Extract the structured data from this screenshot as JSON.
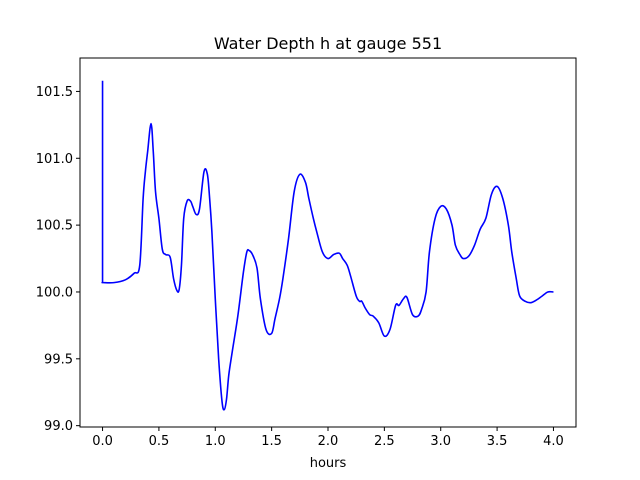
{
  "chart_data": {
    "type": "line",
    "title": "Water Depth h at gauge 551",
    "xlabel": "hours",
    "ylabel": "",
    "xlim": [
      -0.2,
      4.2
    ],
    "ylim": [
      98.99,
      101.75
    ],
    "x_ticks": [
      0.0,
      0.5,
      1.0,
      1.5,
      2.0,
      2.5,
      3.0,
      3.5,
      4.0
    ],
    "x_tick_labels": [
      "0.0",
      "0.5",
      "1.0",
      "1.5",
      "2.0",
      "2.5",
      "3.0",
      "3.5",
      "4.0"
    ],
    "y_ticks": [
      99.0,
      99.5,
      100.0,
      100.5,
      101.0,
      101.5
    ],
    "y_tick_labels": [
      "99.0",
      "99.5",
      "100.0",
      "100.5",
      "101.0",
      "101.5"
    ],
    "grid": false,
    "series": [
      {
        "color": "#0000ff",
        "x": [
          0.0,
          0.0,
          0.005,
          0.1,
          0.2,
          0.28,
          0.33,
          0.36,
          0.38,
          0.4,
          0.43,
          0.45,
          0.47,
          0.5,
          0.53,
          0.56,
          0.6,
          0.63,
          0.66,
          0.68,
          0.7,
          0.72,
          0.75,
          0.78,
          0.8,
          0.83,
          0.86,
          0.9,
          0.93,
          0.95,
          0.97,
          1.0,
          1.03,
          1.06,
          1.08,
          1.1,
          1.12,
          1.15,
          1.2,
          1.25,
          1.28,
          1.3,
          1.33,
          1.37,
          1.4,
          1.45,
          1.5,
          1.53,
          1.57,
          1.6,
          1.65,
          1.7,
          1.75,
          1.8,
          1.83,
          1.87,
          1.9,
          1.95,
          2.0,
          2.05,
          2.1,
          2.13,
          2.17,
          2.2,
          2.25,
          2.28,
          2.3,
          2.33,
          2.37,
          2.4,
          2.45,
          2.5,
          2.55,
          2.6,
          2.63,
          2.67,
          2.7,
          2.75,
          2.8,
          2.83,
          2.87,
          2.9,
          2.95,
          3.0,
          3.05,
          3.1,
          3.13,
          3.17,
          3.2,
          3.25,
          3.3,
          3.35,
          3.4,
          3.45,
          3.5,
          3.55,
          3.6,
          3.63,
          3.67,
          3.7,
          3.75,
          3.8,
          3.85,
          3.9,
          3.95,
          4.0
        ],
        "y": [
          101.58,
          100.07,
          100.07,
          100.07,
          100.09,
          100.14,
          100.2,
          100.7,
          100.9,
          101.05,
          101.26,
          101.05,
          100.75,
          100.55,
          100.32,
          100.28,
          100.26,
          100.1,
          100.01,
          100.02,
          100.2,
          100.55,
          100.68,
          100.68,
          100.64,
          100.58,
          100.62,
          100.9,
          100.88,
          100.7,
          100.45,
          99.95,
          99.5,
          99.18,
          99.12,
          99.2,
          99.38,
          99.55,
          99.82,
          100.15,
          100.3,
          100.31,
          100.28,
          100.18,
          99.95,
          99.72,
          99.69,
          99.8,
          99.95,
          100.1,
          100.4,
          100.75,
          100.88,
          100.82,
          100.7,
          100.55,
          100.45,
          100.3,
          100.25,
          100.28,
          100.29,
          100.25,
          100.2,
          100.12,
          99.97,
          99.93,
          99.93,
          99.88,
          99.83,
          99.82,
          99.77,
          99.67,
          99.72,
          99.9,
          99.9,
          99.95,
          99.96,
          99.83,
          99.82,
          99.87,
          100.0,
          100.3,
          100.55,
          100.64,
          100.62,
          100.5,
          100.35,
          100.28,
          100.25,
          100.27,
          100.35,
          100.47,
          100.55,
          100.73,
          100.79,
          100.7,
          100.5,
          100.3,
          100.1,
          99.97,
          99.93,
          99.92,
          99.94,
          99.97,
          100.0,
          100.0
        ]
      }
    ]
  }
}
